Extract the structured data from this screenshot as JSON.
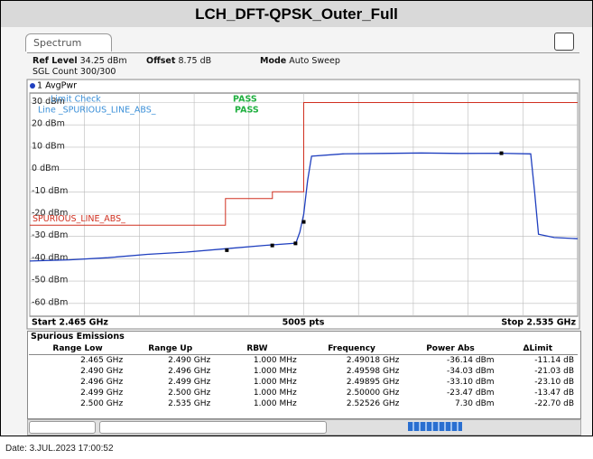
{
  "header": {
    "title": "LCH_DFT-QPSK_Outer_Full"
  },
  "tab": "Spectrum",
  "info": {
    "ref_level_label": "Ref Level",
    "ref_level": "34.25 dBm",
    "offset_label": "Offset",
    "offset": "8.75 dB",
    "mode_label": "Mode",
    "mode": "Auto Sweep",
    "count": "SGL Count 300/300"
  },
  "chart_data": {
    "type": "line",
    "trace_label": "1 AvgPwr",
    "limit_check": {
      "label": "Limit Check",
      "result": "PASS",
      "line_label": "Line _SPURIOUS_LINE_ABS_",
      "line_result": "PASS"
    },
    "limit_name": "SPURIOUS_LINE_ABS_",
    "x_start_label": "Start 2.465 GHz",
    "x_points_label": "5005 pts",
    "x_stop_label": "Stop 2.535 GHz",
    "xlim": [
      2.465,
      2.535
    ],
    "xticks": [
      2.465,
      2.472,
      2.479,
      2.486,
      2.493,
      2.5,
      2.507,
      2.514,
      2.521,
      2.528,
      2.535
    ],
    "ylim": [
      -65.75,
      34.25
    ],
    "yticks": [
      {
        "value": 30,
        "label": "30 dBm"
      },
      {
        "value": 20,
        "label": "20 dBm"
      },
      {
        "value": 10,
        "label": "10 dBm"
      },
      {
        "value": 0,
        "label": "0 dBm"
      },
      {
        "value": -10,
        "label": "-10 dBm"
      },
      {
        "value": -20,
        "label": "-20 dBm"
      },
      {
        "value": -30,
        "label": "-30 dBm"
      },
      {
        "value": -40,
        "label": "-40 dBm"
      },
      {
        "value": -50,
        "label": "-50 dBm"
      },
      {
        "value": -60,
        "label": "-60 dBm"
      }
    ],
    "grid": true,
    "series": [
      {
        "name": "Limit",
        "type": "line",
        "color": "#d03020",
        "x": [
          2.465,
          2.49,
          2.49,
          2.496,
          2.496,
          2.5,
          2.5,
          2.535
        ],
        "values": [
          -25,
          -25,
          -13,
          -13,
          -10,
          -10,
          30,
          30
        ]
      },
      {
        "name": "AvgPwr",
        "type": "line",
        "color": "#1f3fbf",
        "x": [
          2.465,
          2.47,
          2.475,
          2.48,
          2.485,
          2.49,
          2.495,
          2.499,
          2.4995,
          2.5,
          2.5005,
          2.501,
          2.505,
          2.51,
          2.515,
          2.52,
          2.525,
          2.529,
          2.5295,
          2.53,
          2.532,
          2.535
        ],
        "values": [
          -41,
          -40.5,
          -39.5,
          -38,
          -37,
          -35.5,
          -34,
          -33,
          -28,
          -20,
          -5,
          6,
          7,
          7.2,
          7.4,
          7.2,
          7.3,
          7,
          -10,
          -29,
          -30.5,
          -31
        ]
      },
      {
        "name": "Markers",
        "type": "scatter",
        "color": "#000000",
        "x": [
          2.49018,
          2.49598,
          2.49895,
          2.5,
          2.52526
        ],
        "values": [
          -36.14,
          -34.03,
          -33.1,
          -23.47,
          7.3
        ]
      }
    ]
  },
  "table": {
    "title": "Spurious Emissions",
    "columns": [
      "Range Low",
      "Range Up",
      "RBW",
      "Frequency",
      "Power Abs",
      "ΔLimit"
    ],
    "rows": [
      [
        "2.465 GHz",
        "2.490 GHz",
        "1.000 MHz",
        "2.49018 GHz",
        "-36.14 dBm",
        "-11.14 dB"
      ],
      [
        "2.490 GHz",
        "2.496 GHz",
        "1.000 MHz",
        "2.49598 GHz",
        "-34.03 dBm",
        "-21.03 dB"
      ],
      [
        "2.496 GHz",
        "2.499 GHz",
        "1.000 MHz",
        "2.49895 GHz",
        "-33.10 dBm",
        "-23.10 dB"
      ],
      [
        "2.499 GHz",
        "2.500 GHz",
        "1.000 MHz",
        "2.50000 GHz",
        "-23.47 dBm",
        "-13.47 dB"
      ],
      [
        "2.500 GHz",
        "2.535 GHz",
        "1.000 MHz",
        "2.52526 GHz",
        "7.30 dBm",
        "-22.70 dB"
      ]
    ]
  },
  "footer": {
    "date": "Date: 3.JUL.2023 17:00:52"
  }
}
